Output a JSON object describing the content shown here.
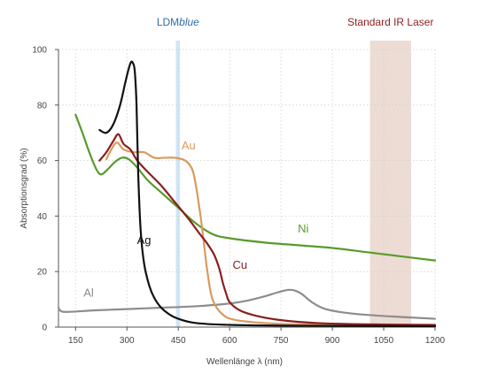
{
  "chart_data": {
    "type": "line",
    "xlabel": "Wellenlänge λ (nm)",
    "ylabel": "Absorptionsgrad (%)",
    "xlim": [
      100,
      1200
    ],
    "ylim": [
      0,
      100
    ],
    "x_ticks": [
      150,
      300,
      450,
      600,
      750,
      900,
      1050,
      1200
    ],
    "y_ticks": [
      0,
      20,
      40,
      60,
      80,
      100
    ],
    "grid": "dotted",
    "bands": [
      {
        "label_prefix": "LDM",
        "label_italic": "blue",
        "x_range": [
          443,
          455
        ],
        "color": "#cfe6f7",
        "label_color": "#2f6ea8"
      },
      {
        "label": "Standard IR Laser",
        "x_range": [
          1010,
          1130
        ],
        "color": "#ecdcd3",
        "label_color": "#8b1e1e"
      }
    ],
    "series": [
      {
        "name": "Ag",
        "color": "#111111",
        "x": [
          220,
          240,
          260,
          280,
          295,
          305,
          312,
          318,
          323,
          328,
          333,
          340,
          350,
          365,
          380,
          400,
          425,
          450,
          500,
          600,
          800,
          1000,
          1200
        ],
        "y": [
          71,
          70,
          73,
          80,
          88,
          93,
          95.5,
          95,
          92,
          80,
          55,
          35,
          23,
          15,
          10.5,
          7,
          4.5,
          3,
          1.5,
          0.8,
          0.5,
          0.4,
          0.3
        ]
      },
      {
        "name": "Au",
        "color": "#d99a5e",
        "x": [
          240,
          250,
          270,
          290,
          320,
          350,
          380,
          410,
          440,
          470,
          490,
          500,
          515,
          525,
          535,
          550,
          580,
          620,
          700,
          800,
          1000,
          1200
        ],
        "y": [
          60.5,
          63,
          66.5,
          64,
          63,
          63,
          61,
          61,
          61,
          60,
          57,
          52,
          40,
          30,
          20,
          10,
          4.5,
          2.5,
          1.5,
          1,
          0.8,
          0.6
        ]
      },
      {
        "name": "Cu",
        "color": "#8b1e1e",
        "x": [
          220,
          240,
          260,
          275,
          290,
          310,
          330,
          360,
          400,
          440,
          480,
          510,
          535,
          555,
          570,
          580,
          590,
          600,
          630,
          680,
          750,
          850,
          1000,
          1200
        ],
        "y": [
          60,
          63,
          67,
          69.5,
          66,
          64,
          60,
          56,
          51,
          45,
          39,
          34,
          30,
          26,
          21,
          16,
          12,
          9,
          6,
          4,
          2.5,
          1.5,
          1,
          0.8
        ]
      },
      {
        "name": "Ni",
        "color": "#5a9a2c",
        "x": [
          150,
          170,
          190,
          210,
          225,
          245,
          265,
          285,
          305,
          330,
          360,
          400,
          450,
          500,
          550,
          600,
          700,
          800,
          900,
          1000,
          1100,
          1200
        ],
        "y": [
          76.5,
          70,
          63,
          57,
          55,
          57,
          59.5,
          61,
          60.5,
          57.5,
          53,
          48.5,
          43,
          37.5,
          33.5,
          32,
          30.5,
          29.5,
          28.5,
          27,
          25.5,
          24
        ]
      },
      {
        "name": "Al",
        "color": "#8c8c8c",
        "x": [
          100,
          105,
          115,
          150,
          200,
          300,
          400,
          500,
          600,
          650,
          700,
          740,
          770,
          790,
          810,
          840,
          880,
          950,
          1050,
          1200
        ],
        "y": [
          7,
          6,
          5.5,
          5.6,
          6,
          6.5,
          7,
          7.5,
          8.5,
          9.5,
          11,
          12.5,
          13.4,
          13.2,
          12,
          9,
          6.5,
          5,
          4,
          3
        ]
      }
    ],
    "series_labels": [
      {
        "name": "Au",
        "x": 480,
        "y": 64,
        "color": "#d99a5e"
      },
      {
        "name": "Ag",
        "x": 350,
        "y": 30,
        "color": "#111111"
      },
      {
        "name": "Cu",
        "x": 630,
        "y": 21,
        "color": "#8b1e1e"
      },
      {
        "name": "Ni",
        "x": 815,
        "y": 34,
        "color": "#5a9a2c"
      },
      {
        "name": "Al",
        "x": 188,
        "y": 11,
        "color": "#8c8c8c"
      }
    ]
  }
}
